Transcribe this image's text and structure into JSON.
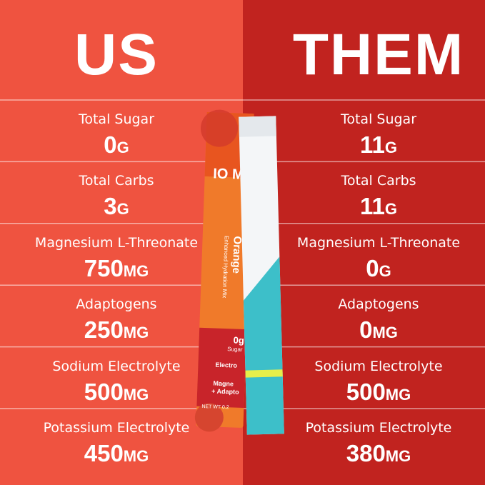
{
  "left": {
    "title": "US",
    "rows": [
      {
        "label": "Total Sugar",
        "amount": "0",
        "unit": "G"
      },
      {
        "label": "Total Carbs",
        "amount": "3",
        "unit": "G"
      },
      {
        "label": "Magnesium L-Threonate",
        "amount": "750",
        "unit": "MG"
      },
      {
        "label": "Adaptogens",
        "amount": "250",
        "unit": "MG"
      },
      {
        "label": "Sodium Electrolyte",
        "amount": "500",
        "unit": "MG"
      },
      {
        "label": "Potassium Electrolyte",
        "amount": "450",
        "unit": "MG"
      }
    ]
  },
  "right": {
    "title": "THEM",
    "rows": [
      {
        "label": "Total Sugar",
        "amount": "11",
        "unit": "G"
      },
      {
        "label": "Total Carbs",
        "amount": "11",
        "unit": "G"
      },
      {
        "label": "Magnesium L-Threonate",
        "amount": "0",
        "unit": "G"
      },
      {
        "label": "Adaptogens",
        "amount": "0",
        "unit": "MG"
      },
      {
        "label": "Sodium Electrolyte",
        "amount": "500",
        "unit": "MG"
      },
      {
        "label": "Potassium Electrolyte",
        "amount": "380",
        "unit": "MG"
      }
    ]
  },
  "packet": {
    "brand": "IO MI",
    "flavor": "Orange",
    "subtitle": "Enhanced Hydration Mix",
    "sugar": "0g",
    "sugar_label": "Sugar",
    "electro": "Electro",
    "magne": "Magne",
    "adapto": "+ Adapto",
    "net_wt": "NET WT 0.2"
  }
}
